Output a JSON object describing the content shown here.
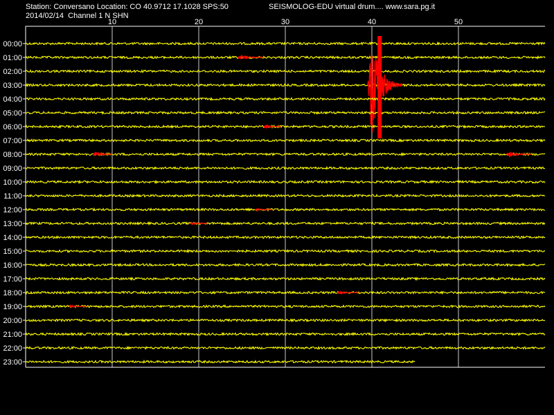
{
  "header": {
    "station_line": "Station: Conversano Location: CO 40.9712 17.1028 SPS:50",
    "date_line": "2014/02/14  Channel 1 N SHN",
    "software_line": "SEISMOLOG-EDU virtual drum.... www.sara.pg.it"
  },
  "colors": {
    "background": "#000000",
    "trace": "#ffff00",
    "event": "#ff0000",
    "grid": "#ffffff",
    "text": "#ffffff"
  },
  "chart_data": {
    "type": "line",
    "title": "",
    "xlabel": "",
    "ylabel": "",
    "x_ticks": [
      10,
      20,
      30,
      40,
      50
    ],
    "xlim": [
      0,
      61
    ],
    "row_labels": [
      "00:00",
      "01:00",
      "02:00",
      "03:00",
      "04:00",
      "05:00",
      "06:00",
      "07:00",
      "08:00",
      "09:00",
      "10:00",
      "11:00",
      "12:00",
      "13:00",
      "14:00",
      "15:00",
      "16:00",
      "17:00",
      "18:00",
      "19:00",
      "20:00",
      "21:00",
      "22:00",
      "23:00"
    ],
    "trace_end_minute": [
      61,
      61,
      61,
      61,
      61,
      61,
      61,
      61,
      61,
      61,
      61,
      61,
      61,
      61,
      61,
      61,
      61,
      61,
      61,
      61,
      61,
      61,
      61,
      45
    ],
    "events": [
      {
        "row": "01:00",
        "start_minute": 24.5,
        "end_minute": 27.5,
        "amplitude": 4
      },
      {
        "row": "03:00",
        "start_minute": 39.5,
        "end_minute": 43.5,
        "amplitude": 78
      },
      {
        "row": "06:00",
        "start_minute": 27.5,
        "end_minute": 29.5,
        "amplitude": 3
      },
      {
        "row": "08:00",
        "start_minute": 7.8,
        "end_minute": 10,
        "amplitude": 4
      },
      {
        "row": "08:00",
        "start_minute": 55.5,
        "end_minute": 58.5,
        "amplitude": 4
      },
      {
        "row": "12:00",
        "start_minute": 26.5,
        "end_minute": 28.5,
        "amplitude": 2
      },
      {
        "row": "13:00",
        "start_minute": 19,
        "end_minute": 21,
        "amplitude": 2
      },
      {
        "row": "18:00",
        "start_minute": 36,
        "end_minute": 38.5,
        "amplitude": 3
      },
      {
        "row": "19:00",
        "start_minute": 5,
        "end_minute": 7,
        "amplitude": 2
      }
    ],
    "grid": true,
    "legend": "none"
  }
}
